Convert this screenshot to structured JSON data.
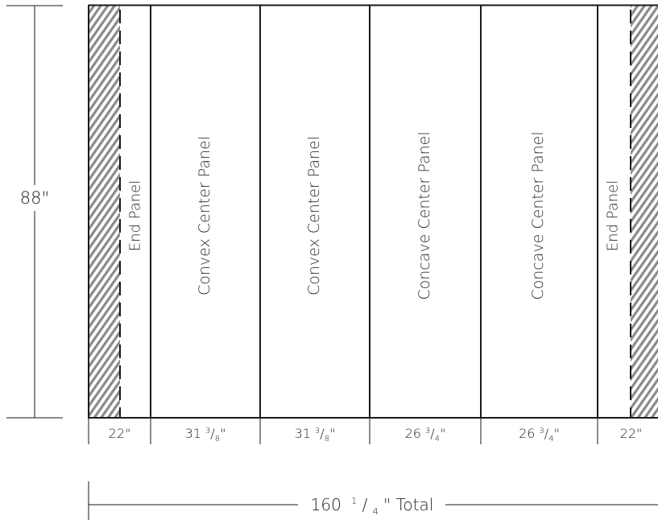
{
  "height_label": "88\"",
  "panels": [
    {
      "label": "End Panel",
      "width_whole": "22",
      "width_num": "",
      "width_den": ""
    },
    {
      "label": "Convex Center Panel",
      "width_whole": "31",
      "width_num": "3",
      "width_den": "8"
    },
    {
      "label": "Convex Center Panel",
      "width_whole": "31",
      "width_num": "3",
      "width_den": "8"
    },
    {
      "label": "Concave Center Panel",
      "width_whole": "26",
      "width_num": "3",
      "width_den": "4"
    },
    {
      "label": "Concave Center Panel",
      "width_whole": "26",
      "width_num": "3",
      "width_den": "4"
    },
    {
      "label": "End Panel",
      "width_whole": "22",
      "width_num": "",
      "width_den": ""
    }
  ],
  "total": {
    "whole": "160",
    "num": "1",
    "den": "4",
    "suffix": "\"  Total"
  },
  "colors": {
    "line": "#1a1a1a",
    "hatch": "#8a8a8a"
  }
}
